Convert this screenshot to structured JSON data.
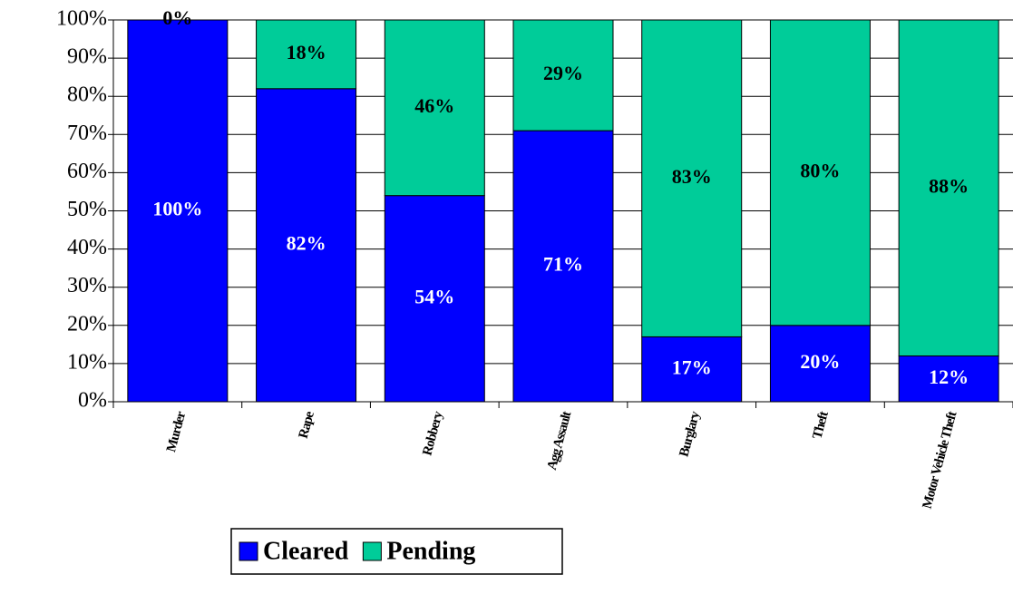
{
  "chart_data": {
    "type": "stacked_bar",
    "categories": [
      "Murder",
      "Rape",
      "Robbery",
      "Agg Assault",
      "Burglary",
      "Theft",
      "Motor Vehicle Theft"
    ],
    "series": [
      {
        "name": "Cleared",
        "color": "#0000ff",
        "values": [
          100,
          82,
          54,
          71,
          17,
          20,
          12
        ],
        "value_labels": [
          "100%",
          "82%",
          "54%",
          "71%",
          "17%",
          "20%",
          "12%"
        ]
      },
      {
        "name": "Pending",
        "color": "#00cc99",
        "values": [
          0,
          18,
          46,
          29,
          83,
          80,
          88
        ],
        "value_labels": [
          "0%",
          "18%",
          "46%",
          "29%",
          "83%",
          "80%",
          "88%"
        ]
      }
    ],
    "ylim": [
      0,
      100
    ],
    "yticks": [
      {
        "value": 0,
        "label": "0%"
      },
      {
        "value": 10,
        "label": "10%"
      },
      {
        "value": 20,
        "label": "20%"
      },
      {
        "value": 30,
        "label": "30%"
      },
      {
        "value": 40,
        "label": "40%"
      },
      {
        "value": 50,
        "label": "50%"
      },
      {
        "value": 60,
        "label": "60%"
      },
      {
        "value": 70,
        "label": "70%"
      },
      {
        "value": 80,
        "label": "80%"
      },
      {
        "value": 90,
        "label": "90%"
      },
      {
        "value": 100,
        "label": "100%"
      }
    ],
    "grid": true,
    "legend": "bottom"
  }
}
